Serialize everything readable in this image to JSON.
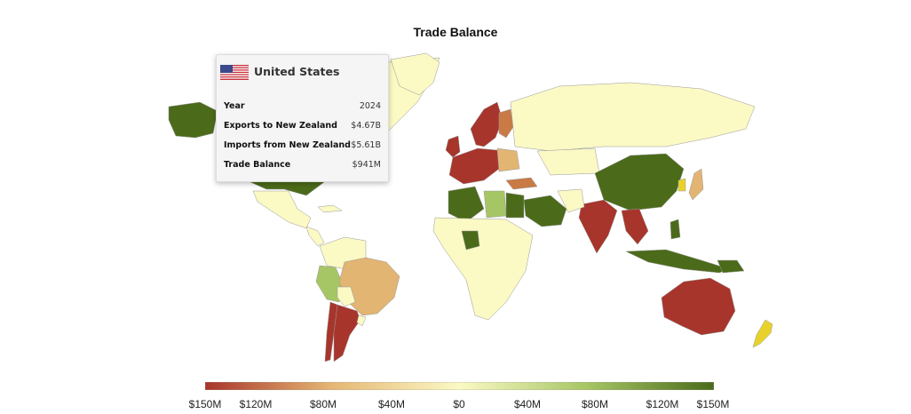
{
  "title": "Trade Balance",
  "tooltip": {
    "country": "United States",
    "flag_icon": "us-flag-icon",
    "rows": [
      {
        "label": "Year",
        "value": "2024"
      },
      {
        "label": "Exports to New Zealand",
        "value": "$4.67B"
      },
      {
        "label": "Imports from New Zealand",
        "value": "$5.61B"
      },
      {
        "label": "Trade Balance",
        "value": "$941M"
      }
    ]
  },
  "legend": {
    "colors": [
      "#a8352b",
      "#e6b774",
      "#fbf9c4",
      "#a6c665",
      "#4b6b1a"
    ],
    "ticks": [
      "$150M",
      "$120M",
      "$80M",
      "$40M",
      "$0",
      "$40M",
      "$80M",
      "$120M",
      "$150M"
    ]
  },
  "colors": {
    "deficit_strong": "#a8352b",
    "deficit_mid": "#c97a45",
    "deficit_light": "#e2b572",
    "neutral": "#fbf9c4",
    "surplus_light": "#a6c665",
    "surplus_strong": "#4b6b1a",
    "highlight_nz": "#e8d22a"
  }
}
